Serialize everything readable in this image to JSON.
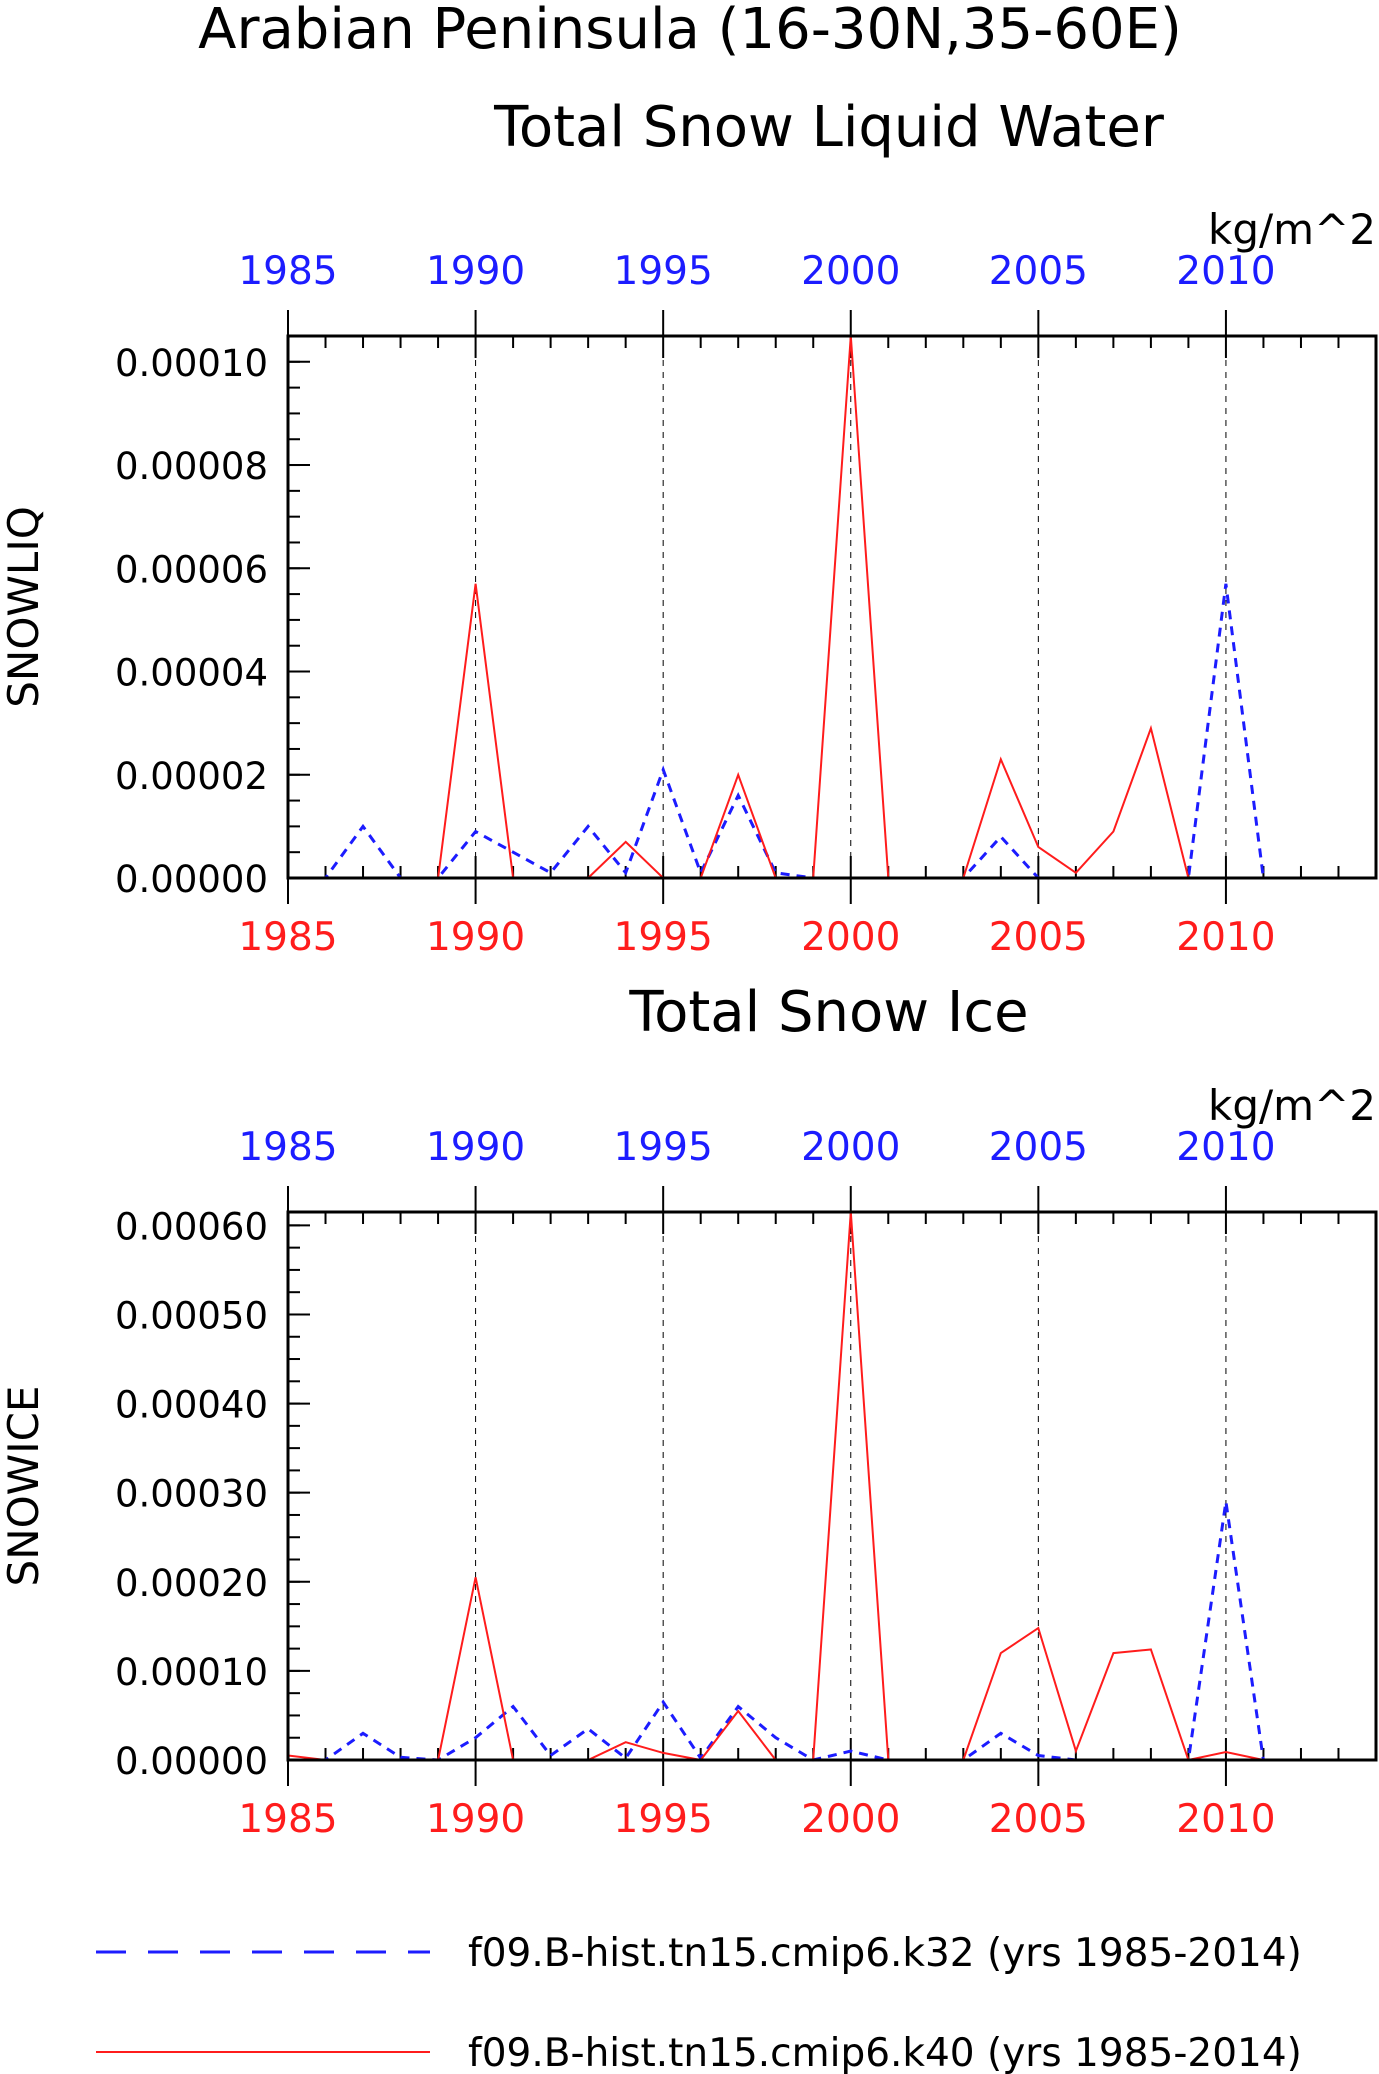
{
  "figure": {
    "title_line1": "Arabian Peninsula (16-30N,35-60E)",
    "title_line2": "Total Snow Liquid Water",
    "legend": [
      {
        "label": "f09.B-hist.tn15.cmip6.k32 (yrs 1985-2014)",
        "color": "#1c1cff",
        "style": "dashed"
      },
      {
        "label": "f09.B-hist.tn15.cmip6.k40 (yrs 1985-2014)",
        "color": "#ff1c1c",
        "style": "solid"
      }
    ]
  },
  "colors": {
    "k32": "#1c1cff",
    "k40": "#ff1c1c",
    "axis": "#000000",
    "grid": "#000000"
  },
  "chart_data": [
    {
      "type": "line",
      "title": "",
      "units": "kg/m^2",
      "ylabel": "SNOWLIQ",
      "xlabel": "",
      "xlim": [
        1985,
        2014
      ],
      "ylim": [
        0,
        0.000105
      ],
      "x_ticks": [
        1985,
        1990,
        1995,
        2000,
        2005,
        2010
      ],
      "x_tick_labels_bottom": [
        "1985",
        "1990",
        "1995",
        "2000",
        "2005",
        "2010"
      ],
      "x_tick_labels_top": [
        "1985",
        "1990",
        "1995",
        "2000",
        "2005",
        "2010"
      ],
      "y_ticks": [
        0,
        2e-05,
        4e-05,
        6e-05,
        8e-05,
        0.0001
      ],
      "y_tick_labels": [
        "0.00000",
        "0.00002",
        "0.00004",
        "0.00006",
        "0.00008",
        "0.00010"
      ],
      "grid_x": [
        1990,
        1995,
        2000,
        2005,
        2010
      ],
      "x": [
        1985,
        1986,
        1987,
        1988,
        1989,
        1990,
        1991,
        1992,
        1993,
        1994,
        1995,
        1996,
        1997,
        1998,
        1999,
        2000,
        2001,
        2002,
        2003,
        2004,
        2005,
        2006,
        2007,
        2008,
        2009,
        2010,
        2011,
        2012,
        2013,
        2014
      ],
      "series": [
        {
          "key": "k32",
          "style": "dashed",
          "values": [
            0,
            0,
            1e-05,
            0,
            0,
            9e-06,
            5e-06,
            1e-06,
            1e-05,
            1e-06,
            2.1e-05,
            1e-06,
            1.6e-05,
            1e-06,
            0,
            0,
            0,
            0,
            0,
            8e-06,
            0,
            0,
            0,
            0,
            0,
            5.7e-05,
            0,
            0,
            0,
            0
          ]
        },
        {
          "key": "k40",
          "style": "solid",
          "values": [
            0,
            0,
            0,
            0,
            0,
            5.7e-05,
            0,
            0,
            0,
            7e-06,
            0,
            0,
            2e-05,
            0,
            0,
            0.000105,
            0,
            0,
            0,
            2.3e-05,
            6e-06,
            1e-06,
            9e-06,
            2.9e-05,
            0,
            0,
            0,
            0,
            0,
            0
          ]
        }
      ]
    },
    {
      "type": "line",
      "title": "Total Snow Ice",
      "units": "kg/m^2",
      "ylabel": "SNOWICE",
      "xlabel": "",
      "xlim": [
        1985,
        2014
      ],
      "ylim": [
        0,
        0.000615
      ],
      "x_ticks": [
        1985,
        1990,
        1995,
        2000,
        2005,
        2010
      ],
      "x_tick_labels_bottom": [
        "1985",
        "1990",
        "1995",
        "2000",
        "2005",
        "2010"
      ],
      "x_tick_labels_top": [
        "1985",
        "1990",
        "1995",
        "2000",
        "2005",
        "2010"
      ],
      "y_ticks": [
        0,
        0.0001,
        0.0002,
        0.0003,
        0.0004,
        0.0005,
        0.0006
      ],
      "y_tick_labels": [
        "0.00000",
        "0.00010",
        "0.00020",
        "0.00030",
        "0.00040",
        "0.00050",
        "0.00060"
      ],
      "grid_x": [
        1990,
        1995,
        2000,
        2005,
        2010
      ],
      "x": [
        1985,
        1986,
        1987,
        1988,
        1989,
        1990,
        1991,
        1992,
        1993,
        1994,
        1995,
        1996,
        1997,
        1998,
        1999,
        2000,
        2001,
        2002,
        2003,
        2004,
        2005,
        2006,
        2007,
        2008,
        2009,
        2010,
        2011,
        2012,
        2013,
        2014
      ],
      "series": [
        {
          "key": "k32",
          "style": "dashed",
          "values": [
            0,
            0,
            3e-05,
            3e-06,
            0,
            2.5e-05,
            6e-05,
            5e-06,
            3.5e-05,
            2e-06,
            6.5e-05,
            2e-06,
            6e-05,
            2.5e-05,
            0,
            1e-05,
            0,
            0,
            0,
            3e-05,
            5e-06,
            0,
            0,
            0,
            0,
            0.00029,
            0,
            0,
            0,
            0
          ]
        },
        {
          "key": "k40",
          "style": "solid",
          "values": [
            5e-06,
            0,
            0,
            0,
            0,
            0.000205,
            0,
            0,
            0,
            2e-05,
            8e-06,
            0,
            5.5e-05,
            0,
            0,
            0.000615,
            0,
            0,
            0,
            0.00012,
            0.000148,
            1e-05,
            0.00012,
            0.000124,
            0,
            9e-06,
            0,
            0,
            0,
            0
          ]
        }
      ]
    }
  ]
}
